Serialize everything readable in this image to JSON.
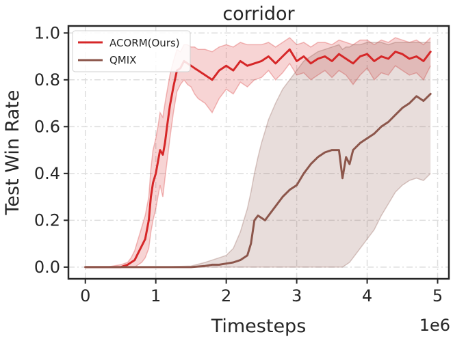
{
  "chart_data": {
    "type": "line",
    "title": "corridor",
    "xlabel": "Timesteps",
    "ylabel": "Test Win Rate",
    "x_offset_label": "1e6",
    "xlim": [
      -0.24,
      5.16
    ],
    "ylim": [
      -0.05,
      1.03
    ],
    "xticks": [
      0,
      1,
      2,
      3,
      4,
      5
    ],
    "xtick_labels": [
      "0",
      "1",
      "2",
      "3",
      "4",
      "5"
    ],
    "yticks": [
      0.0,
      0.2,
      0.4,
      0.6,
      0.8,
      1.0
    ],
    "ytick_labels": [
      "0.0",
      "0.2",
      "0.4",
      "0.6",
      "0.8",
      "1.0"
    ],
    "grid": true,
    "legend_position": "top-left",
    "series": [
      {
        "name": "ACORM(Ours)",
        "color": "#d62728",
        "x": [
          0,
          0.3,
          0.5,
          0.6,
          0.65,
          0.7,
          0.75,
          0.8,
          0.85,
          0.9,
          0.93,
          0.96,
          1.0,
          1.03,
          1.06,
          1.1,
          1.13,
          1.16,
          1.2,
          1.25,
          1.3,
          1.35,
          1.4,
          1.45,
          1.5,
          1.55,
          1.6,
          1.7,
          1.8,
          1.9,
          2.0,
          2.1,
          2.2,
          2.3,
          2.4,
          2.5,
          2.6,
          2.7,
          2.8,
          2.9,
          3.0,
          3.1,
          3.2,
          3.3,
          3.4,
          3.5,
          3.6,
          3.7,
          3.8,
          3.9,
          4.0,
          4.1,
          4.2,
          4.3,
          4.4,
          4.5,
          4.6,
          4.7,
          4.8,
          4.9
        ],
        "y": [
          0.0,
          0.0,
          0.0,
          0.01,
          0.02,
          0.03,
          0.06,
          0.09,
          0.12,
          0.2,
          0.3,
          0.36,
          0.4,
          0.45,
          0.5,
          0.48,
          0.53,
          0.6,
          0.69,
          0.77,
          0.84,
          0.85,
          0.88,
          0.87,
          0.86,
          0.85,
          0.84,
          0.82,
          0.8,
          0.84,
          0.86,
          0.84,
          0.88,
          0.86,
          0.87,
          0.88,
          0.9,
          0.87,
          0.9,
          0.93,
          0.88,
          0.9,
          0.87,
          0.89,
          0.9,
          0.88,
          0.91,
          0.89,
          0.87,
          0.9,
          0.91,
          0.88,
          0.9,
          0.89,
          0.92,
          0.91,
          0.89,
          0.9,
          0.88,
          0.92
        ],
        "y_lower": [
          0.0,
          0.0,
          0.0,
          0.0,
          0.0,
          0.0,
          0.01,
          0.02,
          0.04,
          0.08,
          0.15,
          0.2,
          0.25,
          0.3,
          0.35,
          0.3,
          0.38,
          0.45,
          0.55,
          0.66,
          0.75,
          0.78,
          0.8,
          0.78,
          0.77,
          0.74,
          0.72,
          0.7,
          0.66,
          0.72,
          0.76,
          0.74,
          0.79,
          0.77,
          0.8,
          0.81,
          0.84,
          0.8,
          0.83,
          0.87,
          0.82,
          0.83,
          0.8,
          0.82,
          0.84,
          0.81,
          0.84,
          0.82,
          0.78,
          0.82,
          0.85,
          0.8,
          0.83,
          0.82,
          0.86,
          0.84,
          0.82,
          0.83,
          0.8,
          0.86
        ],
        "y_upper": [
          0.0,
          0.0,
          0.01,
          0.02,
          0.04,
          0.07,
          0.12,
          0.17,
          0.22,
          0.3,
          0.42,
          0.5,
          0.55,
          0.6,
          0.66,
          0.64,
          0.7,
          0.75,
          0.82,
          0.88,
          0.93,
          0.92,
          0.95,
          0.95,
          0.94,
          0.94,
          0.93,
          0.93,
          0.92,
          0.94,
          0.95,
          0.94,
          0.96,
          0.95,
          0.95,
          0.95,
          0.96,
          0.94,
          0.96,
          0.98,
          0.95,
          0.96,
          0.94,
          0.96,
          0.96,
          0.95,
          0.97,
          0.96,
          0.95,
          0.97,
          0.97,
          0.95,
          0.97,
          0.96,
          0.98,
          0.97,
          0.96,
          0.97,
          0.95,
          0.98
        ]
      },
      {
        "name": "QMIX",
        "color": "#8c564b",
        "x": [
          0,
          0.5,
          1.0,
          1.5,
          1.7,
          1.8,
          1.9,
          2.0,
          2.1,
          2.2,
          2.3,
          2.35,
          2.4,
          2.45,
          2.5,
          2.55,
          2.6,
          2.7,
          2.8,
          2.9,
          3.0,
          3.1,
          3.2,
          3.3,
          3.4,
          3.5,
          3.6,
          3.65,
          3.7,
          3.75,
          3.8,
          3.9,
          4.0,
          4.1,
          4.2,
          4.3,
          4.4,
          4.5,
          4.6,
          4.7,
          4.8,
          4.9
        ],
        "y": [
          0.0,
          0.0,
          0.0,
          0.0,
          0.005,
          0.01,
          0.01,
          0.015,
          0.02,
          0.03,
          0.05,
          0.1,
          0.2,
          0.22,
          0.21,
          0.2,
          0.22,
          0.26,
          0.3,
          0.33,
          0.35,
          0.4,
          0.44,
          0.47,
          0.49,
          0.5,
          0.5,
          0.38,
          0.47,
          0.44,
          0.5,
          0.53,
          0.55,
          0.57,
          0.6,
          0.62,
          0.65,
          0.68,
          0.7,
          0.73,
          0.71,
          0.74
        ],
        "y_lower": [
          0.0,
          0.0,
          0.0,
          0.0,
          0.0,
          0.0,
          0.0,
          0.0,
          0.0,
          0.0,
          0.0,
          0.0,
          0.0,
          0.0,
          0.0,
          0.0,
          0.0,
          0.0,
          0.0,
          0.0,
          0.0,
          0.0,
          0.0,
          0.0,
          0.0,
          0.0,
          0.0,
          0.0,
          0.01,
          0.02,
          0.04,
          0.08,
          0.12,
          0.16,
          0.22,
          0.27,
          0.32,
          0.35,
          0.37,
          0.38,
          0.37,
          0.4
        ],
        "y_upper": [
          0.0,
          0.0,
          0.0,
          0.005,
          0.02,
          0.03,
          0.04,
          0.05,
          0.08,
          0.15,
          0.25,
          0.32,
          0.4,
          0.47,
          0.53,
          0.58,
          0.63,
          0.7,
          0.76,
          0.8,
          0.84,
          0.88,
          0.9,
          0.92,
          0.93,
          0.94,
          0.95,
          0.93,
          0.94,
          0.94,
          0.95,
          0.95,
          0.96,
          0.96,
          0.96,
          0.95,
          0.96,
          0.96,
          0.96,
          0.96,
          0.96,
          0.96
        ]
      }
    ]
  }
}
